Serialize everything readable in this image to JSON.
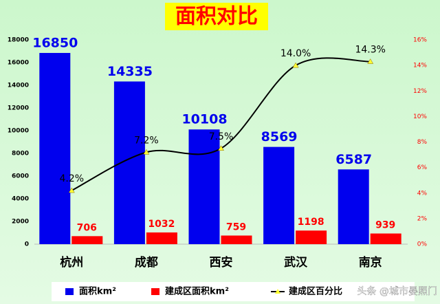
{
  "chart_data": {
    "type": "bar_line",
    "title": "面积对比",
    "categories": [
      "杭州",
      "成都",
      "西安",
      "武汉",
      "南京"
    ],
    "series": [
      {
        "name": "面积km²",
        "color": "#0000ee",
        "values": [
          16850,
          14335,
          10108,
          8569,
          6587
        ]
      },
      {
        "name": "建成区面积km²",
        "color": "#ff0000",
        "values": [
          706,
          1032,
          759,
          1198,
          939
        ]
      },
      {
        "name": "建成区百分比",
        "color": "#000000",
        "marker_color": "#ffff33",
        "axis": "y2",
        "values": [
          4.2,
          7.2,
          7.5,
          14.0,
          14.3
        ],
        "value_labels": [
          "4.2%",
          "7.2%",
          "7.5%",
          "14.0%",
          "14.3%"
        ]
      }
    ],
    "ylim": [
      0,
      18000
    ],
    "yticks": [
      0,
      2000,
      4000,
      6000,
      8000,
      10000,
      12000,
      14000,
      16000,
      18000
    ],
    "y2lim": [
      0,
      16
    ],
    "y2ticks": [
      {
        "value": 0,
        "label": "0%"
      },
      {
        "value": 2,
        "label": "2%"
      },
      {
        "value": 4,
        "label": "4%"
      },
      {
        "value": 6,
        "label": "6%"
      },
      {
        "value": 8,
        "label": "8%"
      },
      {
        "value": 10,
        "label": "10%"
      },
      {
        "value": 12,
        "label": "12%"
      },
      {
        "value": 14,
        "label": "14%"
      },
      {
        "value": 16,
        "label": "16%"
      }
    ],
    "watermark": "头条 @城市晏照门"
  }
}
